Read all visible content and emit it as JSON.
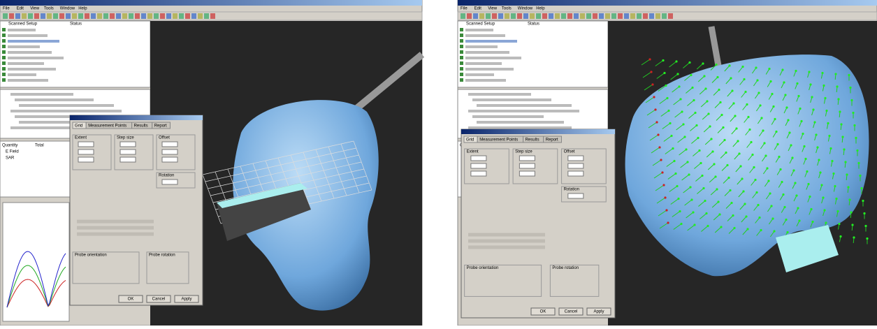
{
  "menu": [
    "File",
    "Edit",
    "View",
    "Tools",
    "Window",
    "Help"
  ],
  "panel_headers": [
    "Scanned Setup",
    "Status"
  ],
  "quantity_table": {
    "headers": [
      "Quantity",
      "Total"
    ],
    "rows": [
      "E Field",
      "SAR"
    ]
  },
  "dialog": {
    "tabs": [
      "Grid",
      "Measurement Points",
      "Results",
      "Report"
    ],
    "groups": [
      "Extent",
      "Step size",
      "Offset",
      "Rotation",
      "Probe orientation",
      "Probe rotation"
    ],
    "buttons": [
      "OK",
      "Cancel",
      "Apply"
    ]
  }
}
